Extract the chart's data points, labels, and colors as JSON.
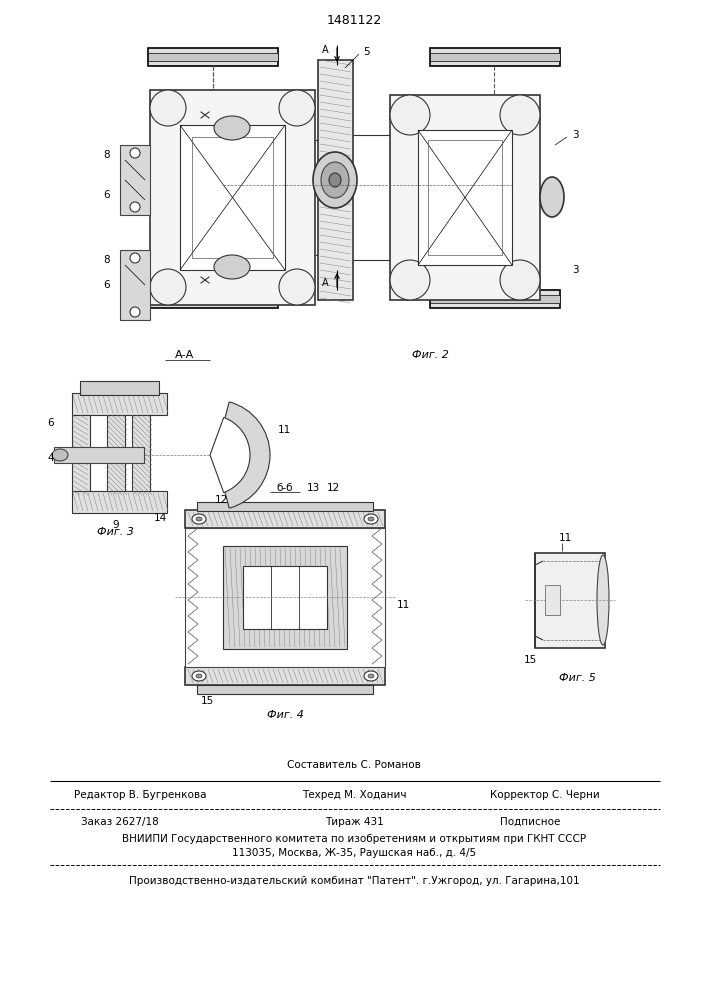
{
  "patent_number": "1481122",
  "bg_color": "#ffffff",
  "line_color": "#000000",
  "fig_width": 7.07,
  "fig_height": 10.0,
  "dpi": 100,
  "footer": {
    "sestavitel": "Составитель С. Романов",
    "redaktor": "Редактор В. Бугренкова",
    "tehred": "Техред М. Ходанич",
    "korrektor": "Корректор С. Черни",
    "zakaz": "Заказ 2627/18",
    "tirazh": "Тираж 431",
    "podpisnoe": "Подписное",
    "vniip1": "ВНИИПИ Государственного комитета по изобретениям и открытиям при ГКНТ СССР",
    "vniip2": "113035, Москва, Ж-35, Раушская наб., д. 4/5",
    "proizv": "Производственно-издательский комбинат \"Патент\". г.Ужгород, ул. Гагарина,101"
  }
}
